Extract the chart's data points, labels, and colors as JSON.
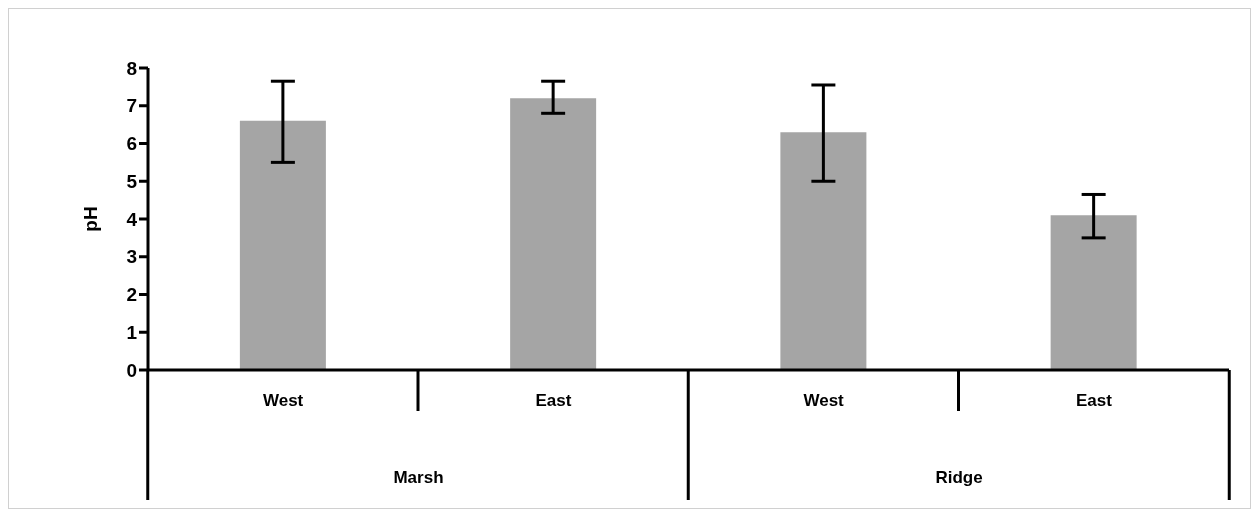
{
  "chart_data": {
    "type": "bar",
    "ylabel": "pH",
    "categories": [
      "West",
      "East",
      "West",
      "East"
    ],
    "values": [
      6.6,
      7.2,
      6.3,
      4.1
    ],
    "errors": [
      [
        5.5,
        7.65
      ],
      [
        6.8,
        7.65
      ],
      [
        5.0,
        7.55
      ],
      [
        3.5,
        4.65
      ]
    ],
    "color": "#a5a5a5",
    "ylim": [
      0,
      8
    ],
    "yticks": [
      0,
      1,
      2,
      3,
      4,
      5,
      6,
      7,
      8
    ],
    "grid": false,
    "legend": false,
    "annotations": [
      "Marsh",
      "Ridge"
    ]
  }
}
